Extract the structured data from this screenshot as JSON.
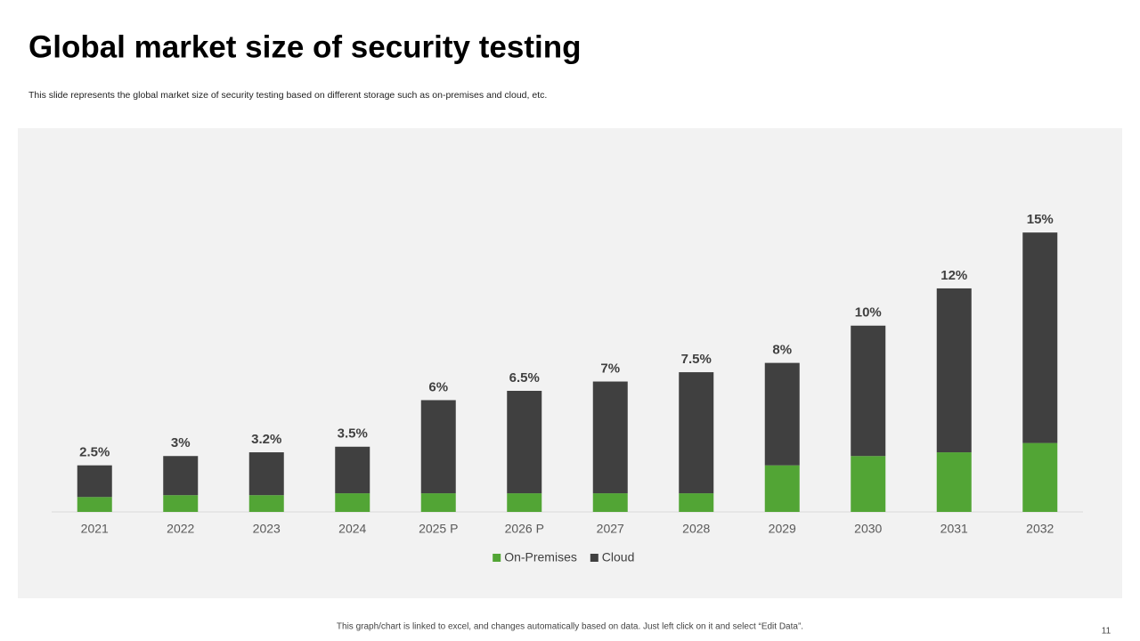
{
  "header": {
    "title": "Global market size of security testing",
    "subtitle": "This slide represents the global market size of security testing based on different storage such as on-premises and cloud, etc."
  },
  "chart_data": {
    "type": "stacked_bar",
    "categories": [
      "2021",
      "2022",
      "2023",
      "2024",
      "2025 P",
      "2026 P",
      "2027",
      "2028",
      "2029",
      "2030",
      "2031",
      "2032"
    ],
    "series": [
      {
        "name": "On-Premises",
        "color": "#52a535",
        "values": [
          0.8,
          0.9,
          0.9,
          1.0,
          1.0,
          1.0,
          1.0,
          1.0,
          2.5,
          3.0,
          3.2,
          3.7
        ]
      },
      {
        "name": "Cloud",
        "color": "#404040",
        "values": [
          1.7,
          2.1,
          2.3,
          2.5,
          5.0,
          5.5,
          6.0,
          6.5,
          5.5,
          7.0,
          8.8,
          11.3
        ]
      }
    ],
    "totals": {
      "values": [
        2.5,
        3,
        3.2,
        3.5,
        6,
        6.5,
        7,
        7.5,
        8,
        10,
        12,
        15
      ],
      "value_labels": [
        "2.5%",
        "3%",
        "3.2%",
        "3.5%",
        "6%",
        "6.5%",
        "7%",
        "7.5%",
        "8%",
        "10%",
        "12%",
        "15%"
      ]
    },
    "ylim": [
      0,
      20.6
    ],
    "legend": "bottom"
  },
  "footer": {
    "note": "This graph/chart is linked to excel, and changes automatically based on data. Just left click on it and select “Edit Data”.",
    "page_number": "11"
  }
}
